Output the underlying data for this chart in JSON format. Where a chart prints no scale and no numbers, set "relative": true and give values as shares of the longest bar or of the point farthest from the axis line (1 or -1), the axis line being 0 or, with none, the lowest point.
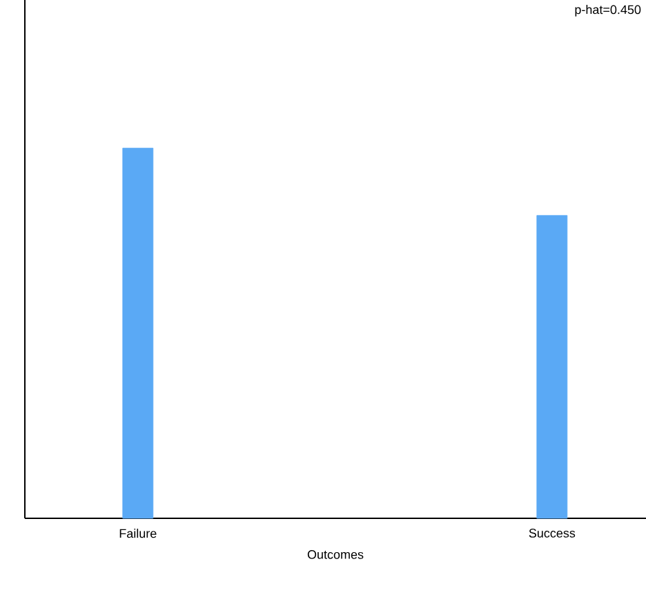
{
  "chart_data": {
    "type": "bar",
    "relative": true,
    "categories": [
      "Failure",
      "Success"
    ],
    "values": [
      1,
      0.818
    ],
    "color": "#5aa9f5",
    "xlabel": "Outcomes",
    "annotations": [
      "p-hat=0.450"
    ]
  }
}
